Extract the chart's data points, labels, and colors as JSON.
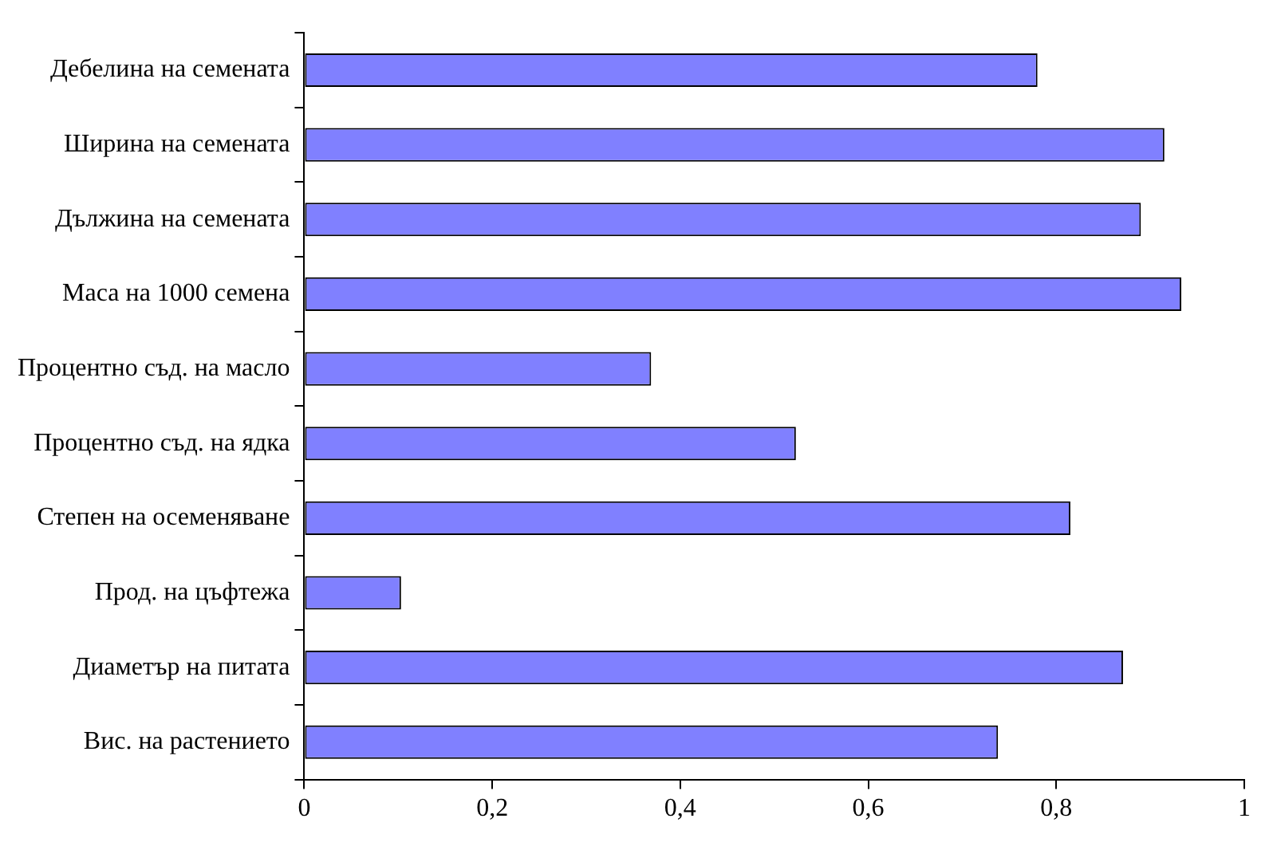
{
  "chart_data": {
    "type": "bar",
    "orientation": "horizontal",
    "categories": [
      "Дебелина на семената",
      "Ширина на семената",
      "Дължина на семената",
      "Маса на 1000 семена",
      "Процентно съд. на масло",
      "Процентно съд. на ядка",
      "Степен на осеменяване",
      "Прод. на цъфтежа",
      "Диаметър на питата",
      "Вис. на растението"
    ],
    "values": [
      0.78,
      0.915,
      0.89,
      0.933,
      0.369,
      0.523,
      0.815,
      0.103,
      0.871,
      0.738
    ],
    "color": "#8080ff",
    "xlim": [
      0,
      1
    ],
    "xticks": [
      0,
      {
        "value": 0.2,
        "label": "0,2"
      },
      {
        "value": 0.4,
        "label": "0,4"
      },
      {
        "value": 0.6,
        "label": "0,6"
      },
      {
        "value": 0.8,
        "label": "0,8"
      },
      1
    ],
    "grid": false,
    "legend": false
  }
}
